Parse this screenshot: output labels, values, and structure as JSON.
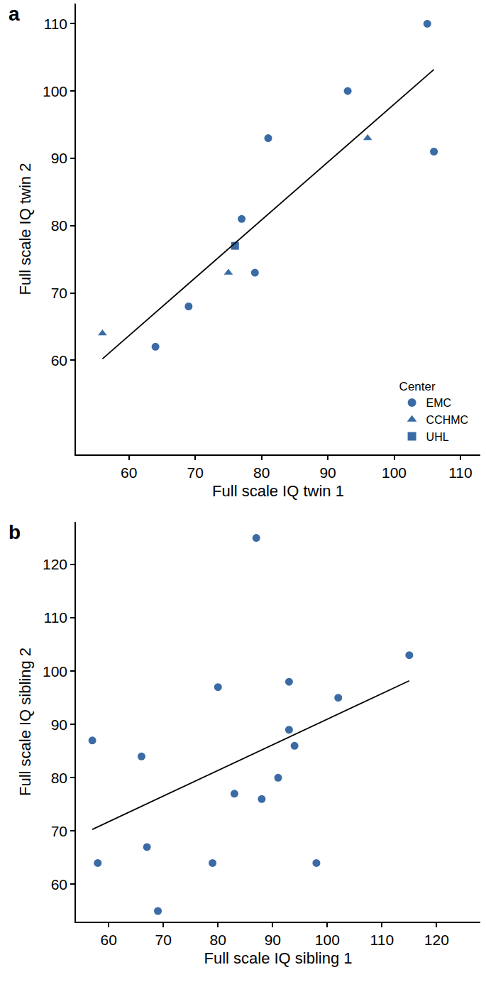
{
  "chart_data": [
    {
      "type": "scatter",
      "title": "a",
      "x_label": "Full scale IQ twin 1",
      "y_label": "Full scale IQ twin 2",
      "xlim": [
        52,
        113
      ],
      "xticks": [
        60,
        70,
        80,
        90,
        100,
        110
      ],
      "ylim": [
        46,
        113
      ],
      "yticks": [
        60,
        70,
        80,
        90,
        100,
        110
      ],
      "grid": false,
      "legend": "bottom right",
      "legend_title": "Center",
      "series": [
        {
          "name": "EMC",
          "marker": "circle",
          "color": "#3b6ba5",
          "x": [
            64,
            69,
            77,
            79,
            81,
            93,
            105,
            106
          ],
          "values": [
            62,
            68,
            81,
            73,
            93,
            100,
            110,
            91
          ]
        },
        {
          "name": "CCHMC",
          "marker": "triangle",
          "color": "#3b6ba5",
          "x": [
            56,
            75,
            96
          ],
          "values": [
            64,
            73,
            93
          ]
        },
        {
          "name": "UHL",
          "marker": "square",
          "color": "#3b6ba5",
          "x": [
            76
          ],
          "values": [
            77
          ]
        },
        {
          "type": "line",
          "color": "#000000",
          "x": [
            56,
            106
          ],
          "values": [
            60.2,
            103.2
          ]
        }
      ]
    },
    {
      "type": "scatter",
      "title": "b",
      "x_label": "Full scale IQ sibling 1",
      "y_label": "Full scale IQ sibling 2",
      "xlim": [
        54,
        128
      ],
      "xticks": [
        60,
        70,
        80,
        90,
        100,
        110,
        120
      ],
      "ylim": [
        53,
        128
      ],
      "yticks": [
        60,
        70,
        80,
        90,
        100,
        110,
        120
      ],
      "grid": false,
      "series": [
        {
          "marker": "circle",
          "color": "#3b6ba5",
          "x": [
            57,
            58,
            66,
            67,
            69,
            79,
            80,
            83,
            87,
            88,
            91,
            93,
            93,
            94,
            98,
            102,
            115
          ],
          "values": [
            87,
            64,
            84,
            67,
            55,
            64,
            97,
            77,
            125,
            76,
            80,
            98,
            89,
            86,
            64,
            95,
            103
          ]
        },
        {
          "type": "line",
          "color": "#000000",
          "x": [
            57,
            115
          ],
          "values": [
            70.3,
            98.2
          ]
        }
      ]
    }
  ]
}
